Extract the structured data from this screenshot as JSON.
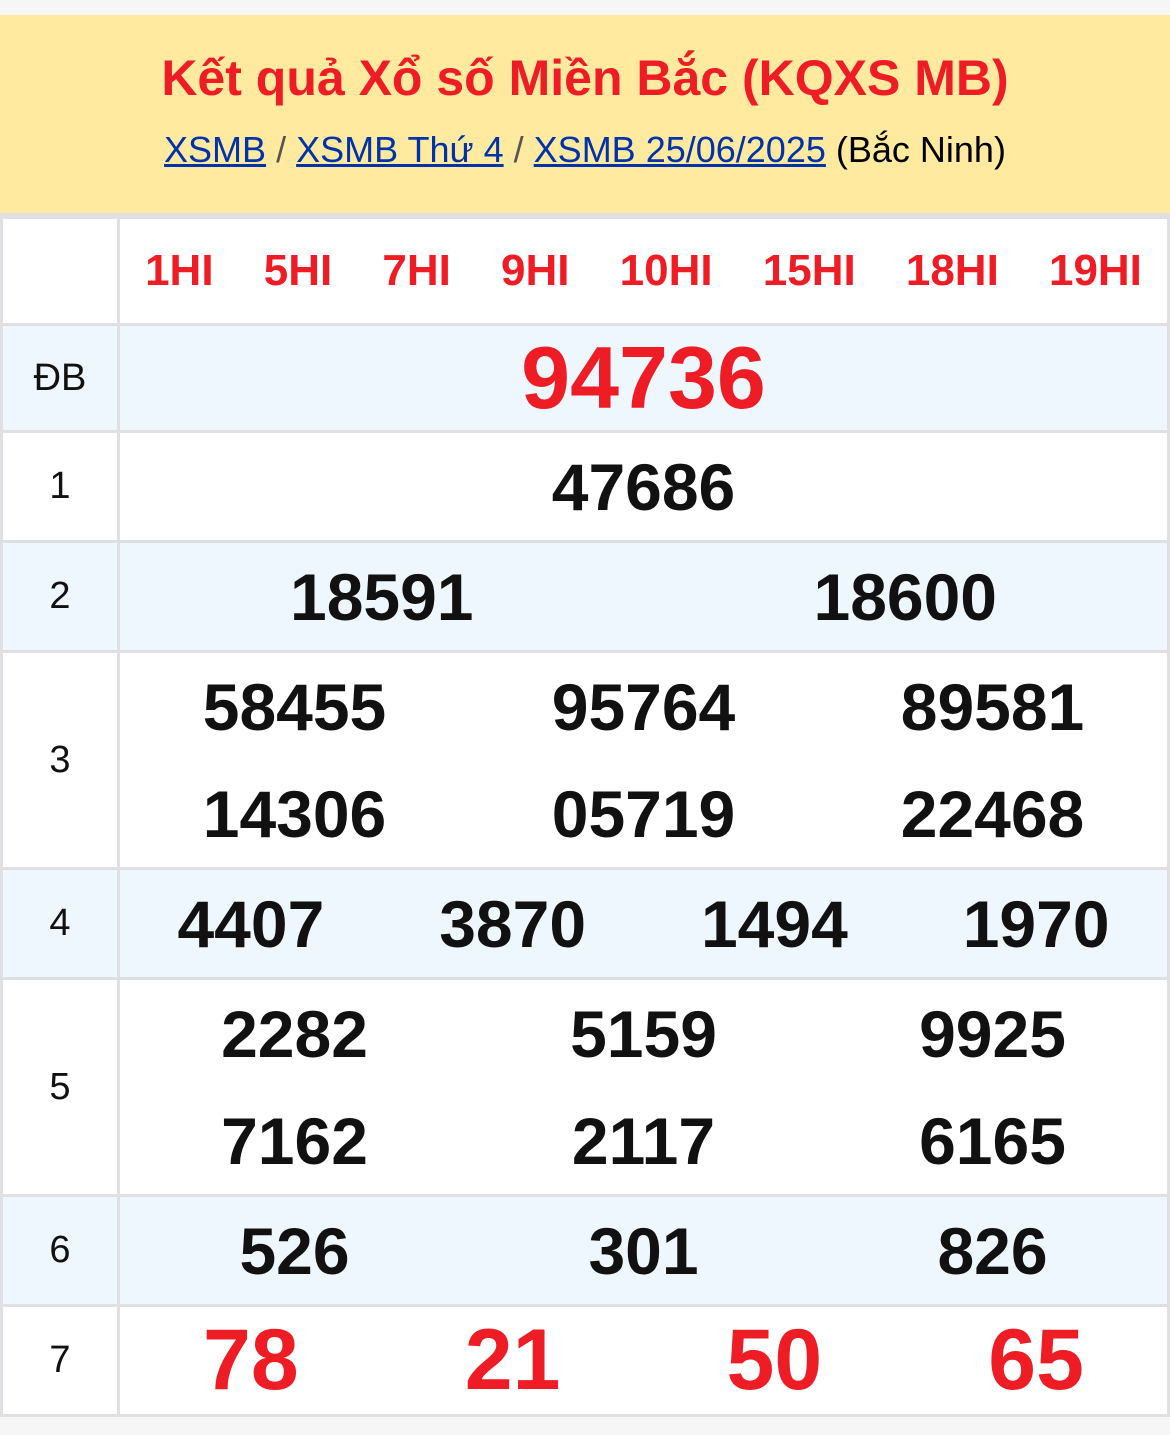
{
  "header": {
    "title": "Kết quả Xổ số Miền Bắc (KQXS MB)",
    "crumbs": [
      "XSMB",
      "XSMB Thứ 4",
      "XSMB 25/06/2025"
    ],
    "separator": "/",
    "province": "(Bắc Ninh)"
  },
  "codes": [
    "1HI",
    "5HI",
    "7HI",
    "9HI",
    "10HI",
    "15HI",
    "18HI",
    "19HI"
  ],
  "prizes": {
    "db": {
      "label": "ĐB",
      "numbers": [
        "94736"
      ]
    },
    "p1": {
      "label": "1",
      "numbers": [
        "47686"
      ]
    },
    "p2": {
      "label": "2",
      "numbers": [
        "18591",
        "18600"
      ]
    },
    "p3": {
      "label": "3",
      "numbers": [
        "58455",
        "95764",
        "89581",
        "14306",
        "05719",
        "22468"
      ]
    },
    "p4": {
      "label": "4",
      "numbers": [
        "4407",
        "3870",
        "1494",
        "1970"
      ]
    },
    "p5": {
      "label": "5",
      "numbers": [
        "2282",
        "5159",
        "9925",
        "7162",
        "2117",
        "6165"
      ]
    },
    "p6": {
      "label": "6",
      "numbers": [
        "526",
        "301",
        "826"
      ]
    },
    "p7": {
      "label": "7",
      "numbers": [
        "78",
        "21",
        "50",
        "65"
      ]
    }
  },
  "colors": {
    "accent": "#ee1c25",
    "header_bg": "#ffeaa0",
    "link": "#0033aa",
    "alt_row": "#eef6fe"
  }
}
